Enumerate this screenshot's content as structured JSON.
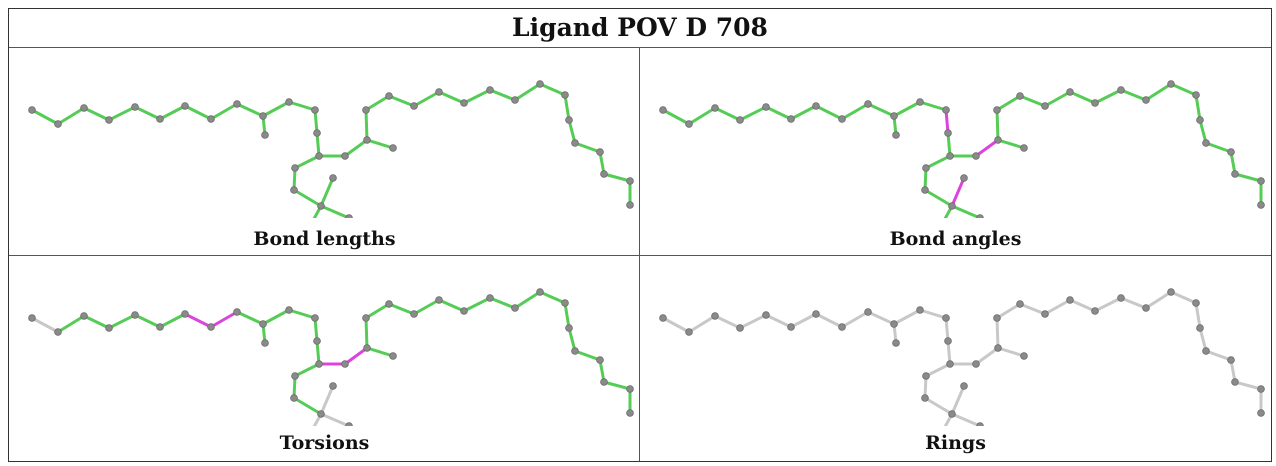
{
  "title": "Ligand POV D 708",
  "panels": [
    {
      "caption": "Bond lengths"
    },
    {
      "caption": "Bond angles"
    },
    {
      "caption": "Torsions"
    },
    {
      "caption": "Rings"
    }
  ],
  "colors": {
    "ok": "#55cc55",
    "outlier": "#dd44dd",
    "neutral": "#c8c8c8",
    "atom": "#8a8a8a"
  }
}
